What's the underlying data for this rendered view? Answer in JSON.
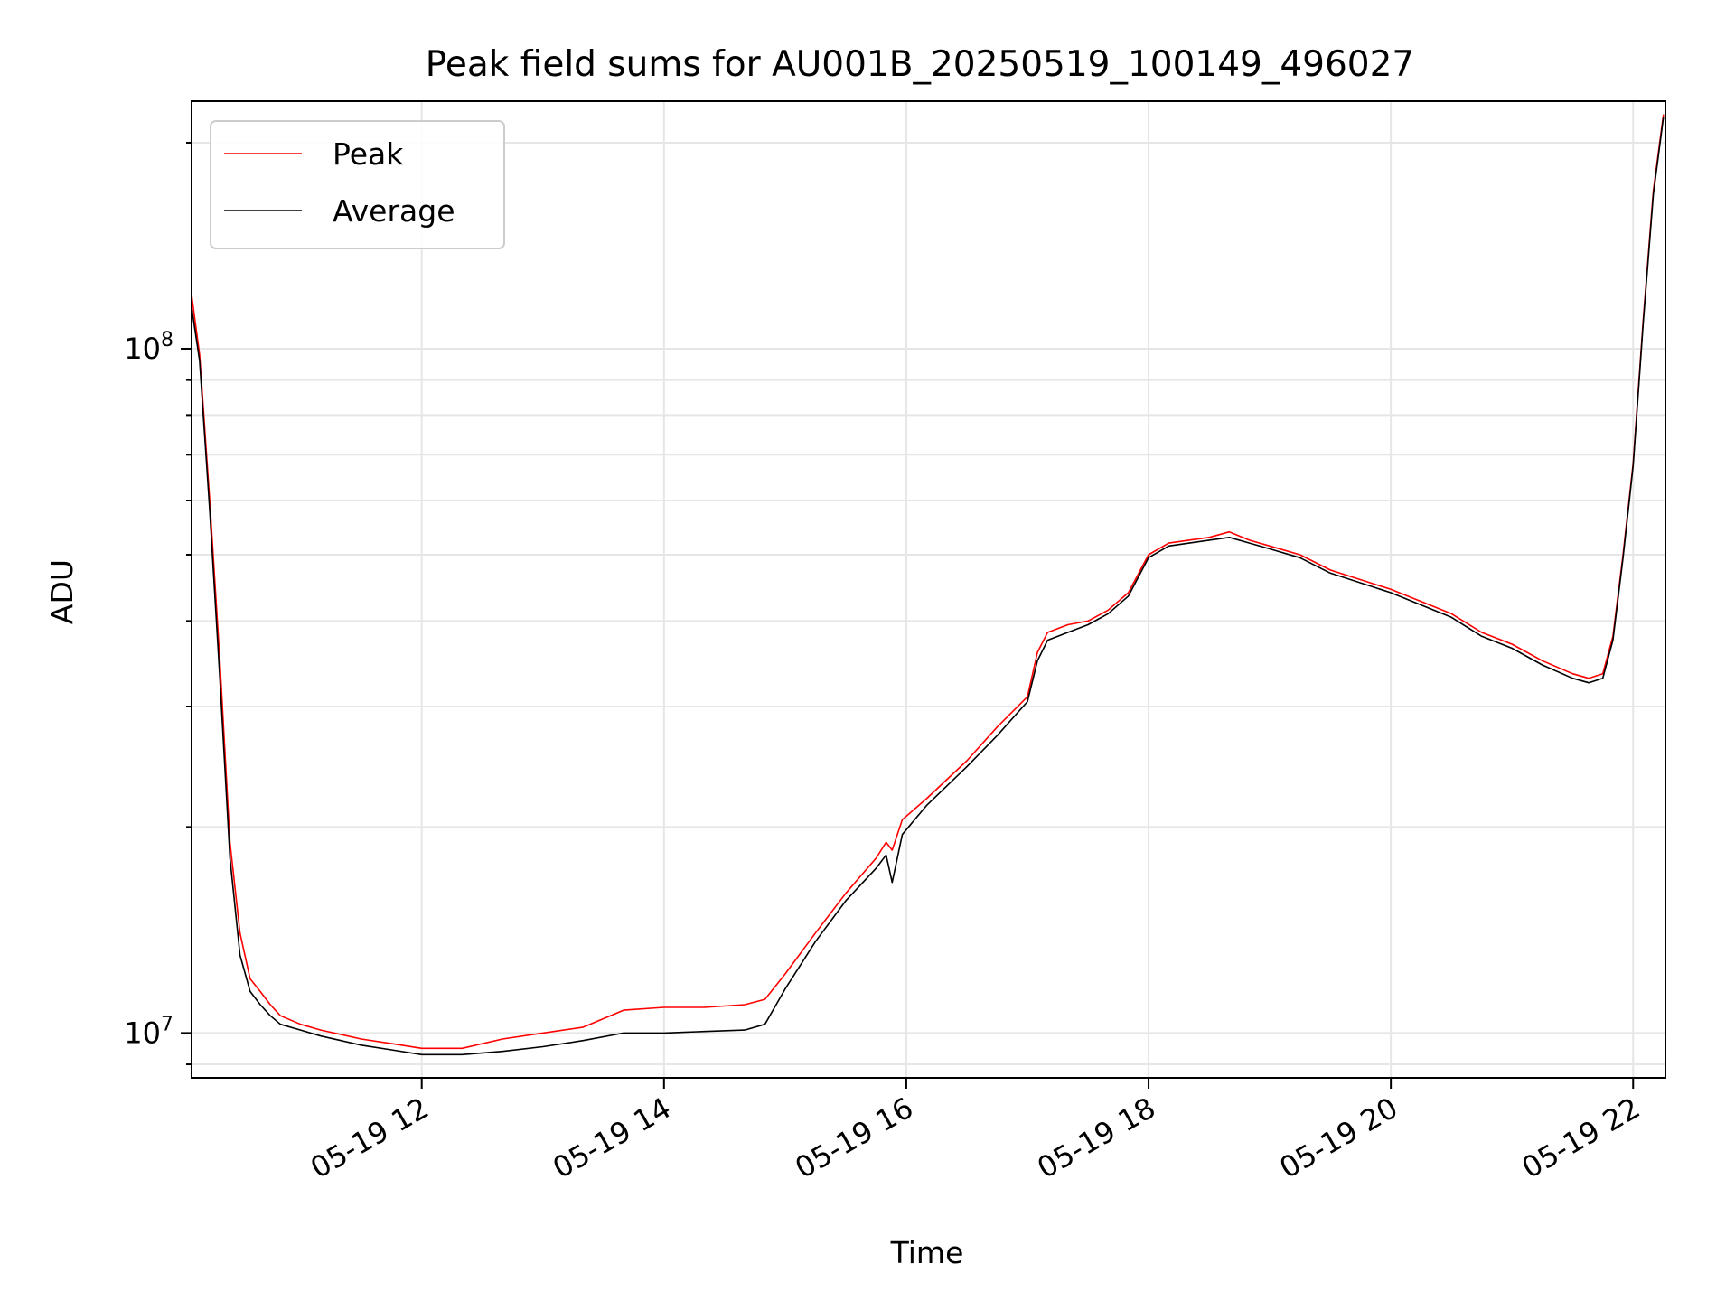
{
  "chart_data": {
    "type": "line",
    "title": "Peak field sums for AU001B_20250519_100149_496027",
    "xlabel": "Time",
    "ylabel": "ADU",
    "yscale": "log",
    "xlim": [
      "2025-05-19 10:06",
      "2025-05-19 22:16"
    ],
    "ylim": [
      8600000,
      230000000
    ],
    "grid": true,
    "legend_position": "top-left",
    "x_ticks": [
      {
        "value": "2025-05-19 12:00",
        "label": "05-19 12"
      },
      {
        "value": "2025-05-19 14:00",
        "label": "05-19 14"
      },
      {
        "value": "2025-05-19 16:00",
        "label": "05-19 16"
      },
      {
        "value": "2025-05-19 18:00",
        "label": "05-19 18"
      },
      {
        "value": "2025-05-19 20:00",
        "label": "05-19 20"
      },
      {
        "value": "2025-05-19 22:00",
        "label": "05-19 22"
      }
    ],
    "y_ticks": [
      {
        "value": 10000000,
        "base": "10",
        "exp": "7"
      },
      {
        "value": 100000000,
        "base": "10",
        "exp": "8"
      }
    ],
    "x": [
      "2025-05-19 10:06",
      "2025-05-19 10:10",
      "2025-05-19 10:15",
      "2025-05-19 10:20",
      "2025-05-19 10:25",
      "2025-05-19 10:30",
      "2025-05-19 10:35",
      "2025-05-19 10:40",
      "2025-05-19 10:45",
      "2025-05-19 10:50",
      "2025-05-19 11:00",
      "2025-05-19 11:10",
      "2025-05-19 11:20",
      "2025-05-19 11:30",
      "2025-05-19 11:45",
      "2025-05-19 12:00",
      "2025-05-19 12:20",
      "2025-05-19 12:40",
      "2025-05-19 13:00",
      "2025-05-19 13:20",
      "2025-05-19 13:40",
      "2025-05-19 14:00",
      "2025-05-19 14:20",
      "2025-05-19 14:40",
      "2025-05-19 14:50",
      "2025-05-19 15:00",
      "2025-05-19 15:15",
      "2025-05-19 15:30",
      "2025-05-19 15:45",
      "2025-05-19 15:50",
      "2025-05-19 15:53",
      "2025-05-19 15:58",
      "2025-05-19 16:10",
      "2025-05-19 16:30",
      "2025-05-19 16:45",
      "2025-05-19 17:00",
      "2025-05-19 17:05",
      "2025-05-19 17:10",
      "2025-05-19 17:20",
      "2025-05-19 17:30",
      "2025-05-19 17:40",
      "2025-05-19 17:50",
      "2025-05-19 18:00",
      "2025-05-19 18:10",
      "2025-05-19 18:30",
      "2025-05-19 18:40",
      "2025-05-19 18:50",
      "2025-05-19 19:00",
      "2025-05-19 19:15",
      "2025-05-19 19:30",
      "2025-05-19 20:00",
      "2025-05-19 20:30",
      "2025-05-19 20:45",
      "2025-05-19 21:00",
      "2025-05-19 21:15",
      "2025-05-19 21:30",
      "2025-05-19 21:38",
      "2025-05-19 21:45",
      "2025-05-19 21:50",
      "2025-05-19 21:55",
      "2025-05-19 22:00",
      "2025-05-19 22:05",
      "2025-05-19 22:10",
      "2025-05-19 22:15"
    ],
    "series": [
      {
        "name": "Peak",
        "color": "#ff0000",
        "values": [
          120000000,
          98000000,
          60000000,
          35000000,
          19000000,
          14000000,
          12000000,
          11500000,
          11000000,
          10600000,
          10300000,
          10100000,
          9950000,
          9800000,
          9650000,
          9500000,
          9500000,
          9800000,
          10000000,
          10200000,
          10800000,
          10900000,
          10900000,
          11000000,
          11200000,
          12200000,
          14000000,
          16000000,
          18000000,
          19000000,
          18500000,
          20500000,
          22000000,
          25000000,
          28000000,
          31000000,
          36000000,
          38500000,
          39500000,
          40000000,
          41500000,
          44000000,
          50000000,
          52000000,
          53000000,
          54000000,
          52500000,
          51500000,
          50000000,
          47500000,
          44500000,
          41000000,
          38500000,
          37000000,
          35000000,
          33500000,
          33000000,
          33500000,
          38000000,
          50000000,
          68000000,
          110000000,
          170000000,
          220000000
        ]
      },
      {
        "name": "Average",
        "color": "#000000",
        "values": [
          115000000,
          96000000,
          58000000,
          33000000,
          18000000,
          13000000,
          11500000,
          11000000,
          10600000,
          10300000,
          10100000,
          9900000,
          9750000,
          9600000,
          9450000,
          9300000,
          9300000,
          9400000,
          9550000,
          9750000,
          10000000,
          10000000,
          10050000,
          10100000,
          10300000,
          11600000,
          13600000,
          15600000,
          17400000,
          18200000,
          16600000,
          19500000,
          21500000,
          24500000,
          27200000,
          30500000,
          35000000,
          37500000,
          38500000,
          39500000,
          41000000,
          43500000,
          49500000,
          51500000,
          52500000,
          53000000,
          52000000,
          51000000,
          49500000,
          47000000,
          44000000,
          40500000,
          38000000,
          36500000,
          34500000,
          33000000,
          32500000,
          33000000,
          37500000,
          49500000,
          67500000,
          109000000,
          168000000,
          218000000
        ]
      }
    ]
  }
}
